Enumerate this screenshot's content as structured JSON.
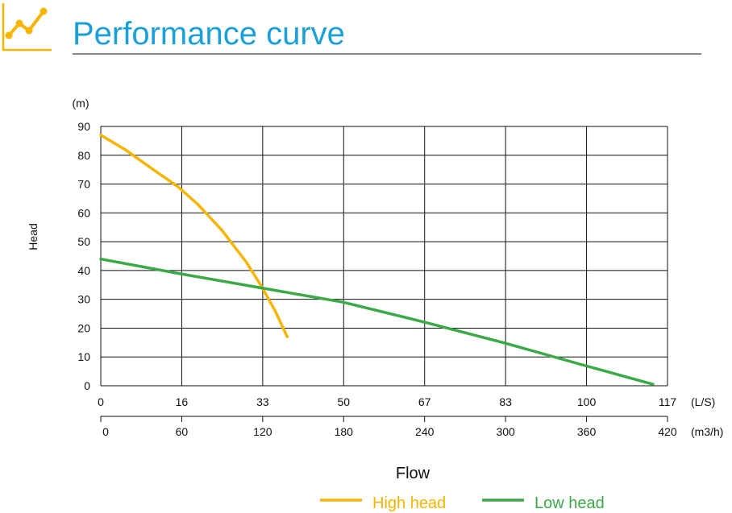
{
  "page": {
    "title": "Performance curve",
    "title_color": "#1a9fd6",
    "icon": "line-chart-icon",
    "icon_color": "#f7b500"
  },
  "chart_data": {
    "type": "line",
    "title": "",
    "xlabel": "Flow",
    "ylabel": "Head",
    "y_unit_label": "(m)",
    "x_unit_label": "(L/S)",
    "x2_unit_label": "(m3/h)",
    "xlim": [
      0,
      117
    ],
    "ylim": [
      0,
      90
    ],
    "grid": true,
    "legend_position": "bottom-right",
    "x_ticks": [
      "0",
      "16",
      "33",
      "50",
      "67",
      "83",
      "100",
      "117"
    ],
    "x2_ticks": [
      "0",
      "60",
      "120",
      "180",
      "240",
      "300",
      "360",
      "420"
    ],
    "y_ticks": [
      "0",
      "10",
      "20",
      "30",
      "40",
      "50",
      "60",
      "70",
      "80",
      "90"
    ],
    "series": [
      {
        "name": "High head",
        "color": "#f7b500",
        "x": [
          0,
          5,
          10,
          16,
          20,
          25,
          30,
          33,
          36,
          38.5
        ],
        "y": [
          87,
          82,
          76,
          69,
          63,
          54,
          43,
          35,
          26,
          17
        ]
      },
      {
        "name": "Low head",
        "color": "#3aaa47",
        "x": [
          0,
          16,
          33,
          50,
          67,
          83,
          100,
          114
        ],
        "y": [
          44,
          39,
          34,
          29,
          22,
          15,
          7,
          0.5
        ]
      }
    ]
  }
}
